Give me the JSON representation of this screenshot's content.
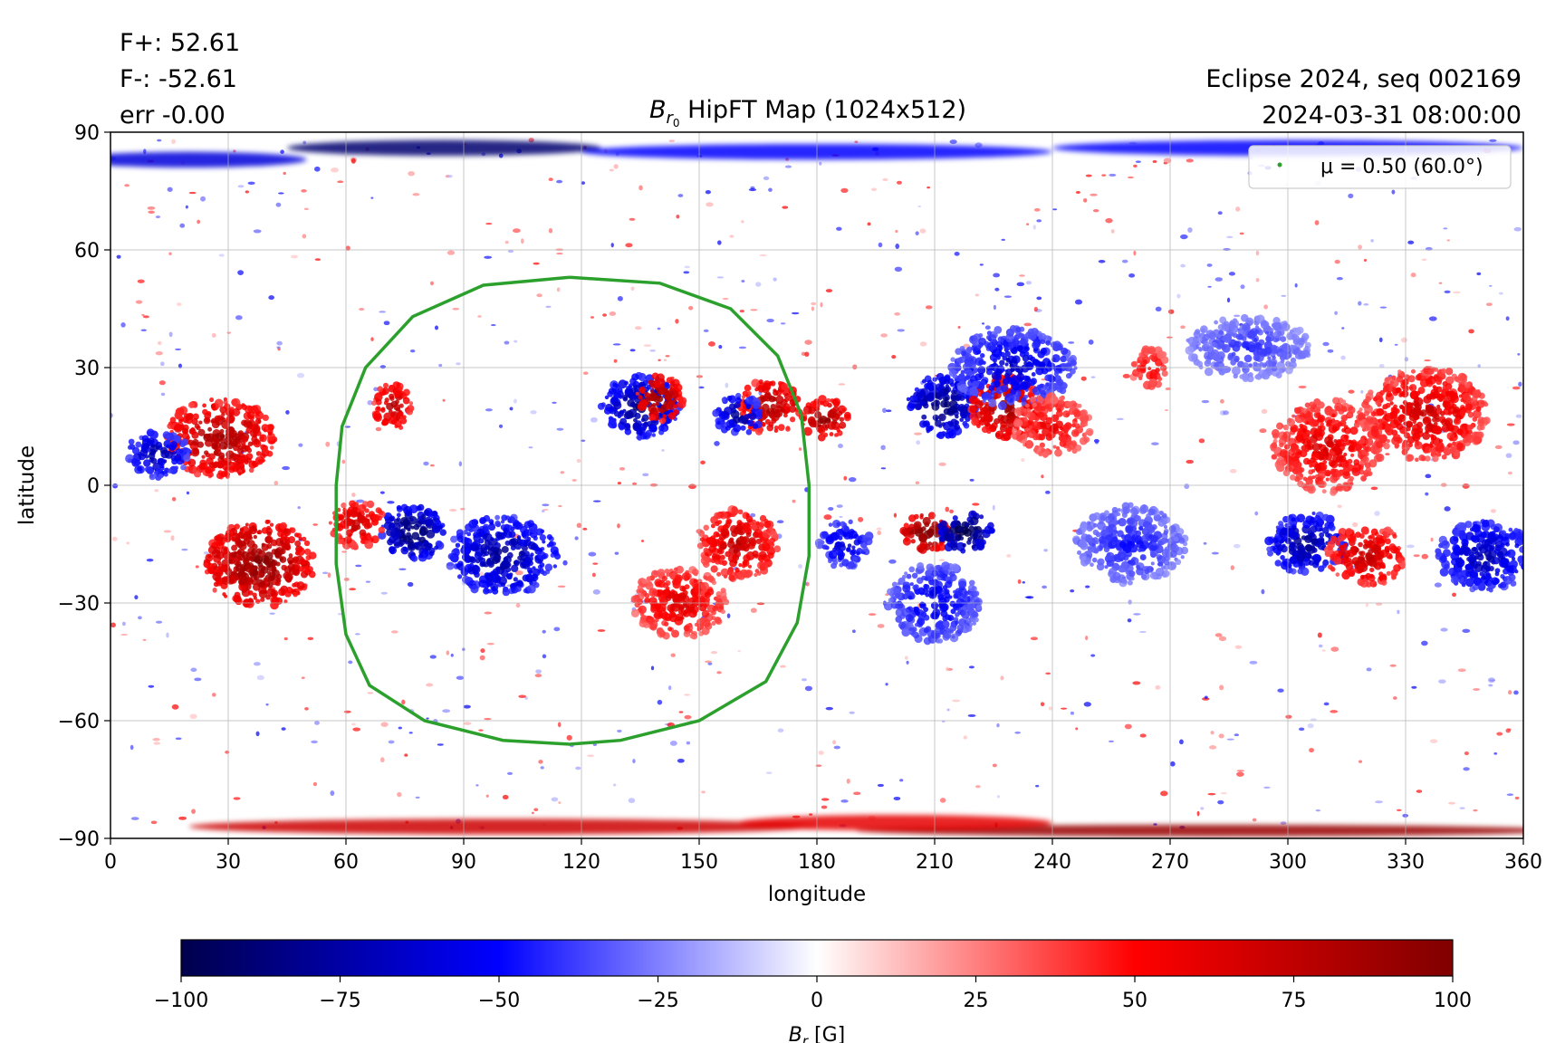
{
  "header": {
    "flux_pos": "F+: 52.61",
    "flux_neg": "F-: -52.61",
    "err": "err -0.00",
    "run": "Eclipse 2024, seq 002169",
    "datetime": "2024-03-31 08:00:00"
  },
  "chart_data": {
    "type": "heatmap",
    "title_main": "B",
    "title_sub": "r",
    "title_subsub": "0",
    "title_rest": " HipFT Map (1024x512)",
    "xlabel": "longitude",
    "ylabel": "latitude",
    "xlim": [
      0,
      360
    ],
    "ylim": [
      -90,
      90
    ],
    "xticks": [
      0,
      30,
      60,
      90,
      120,
      150,
      180,
      210,
      240,
      270,
      300,
      330,
      360
    ],
    "yticks": [
      90,
      60,
      30,
      0,
      -30,
      -60,
      -90
    ],
    "grid": true,
    "legend": {
      "placement": "top-right",
      "label": "μ = 0.50 (60.0°)",
      "color": "#2ca02c"
    },
    "mu_contour": {
      "color": "#2ca02c",
      "points": [
        [
          117,
          53
        ],
        [
          140,
          51.5
        ],
        [
          158,
          45
        ],
        [
          170,
          33
        ],
        [
          176,
          18
        ],
        [
          178,
          0
        ],
        [
          178,
          -18
        ],
        [
          175,
          -35
        ],
        [
          167,
          -50
        ],
        [
          150,
          -60
        ],
        [
          130,
          -65
        ],
        [
          117,
          -66
        ],
        [
          100,
          -65
        ],
        [
          80,
          -60
        ],
        [
          66,
          -51
        ],
        [
          60,
          -38
        ],
        [
          57.5,
          -20
        ],
        [
          57.5,
          0
        ],
        [
          59,
          15
        ],
        [
          65,
          30
        ],
        [
          77,
          43
        ],
        [
          95,
          51
        ],
        [
          117,
          53
        ]
      ]
    },
    "colorbar": {
      "label_main": "B",
      "label_sub": "r",
      "label_unit": " [G]",
      "min": -100,
      "max": 100,
      "ticks": [
        -100,
        -75,
        -50,
        -25,
        0,
        25,
        50,
        75,
        100
      ],
      "tick_labels": [
        "−100",
        "−75",
        "−50",
        "−25",
        "0",
        "25",
        "50",
        "75",
        "100"
      ],
      "colormap": "seismic",
      "stops": [
        "#00004c",
        "#0000ff",
        "#ffffff",
        "#ff0000",
        "#800000"
      ]
    },
    "regions": [
      {
        "lon": 208,
        "lat": -12,
        "value": 100,
        "wlon": 6,
        "hlat": 5
      },
      {
        "lon": 218,
        "lat": -12,
        "value": -100,
        "wlon": 7,
        "hlat": 5
      },
      {
        "lon": 212,
        "lat": 20,
        "value": -85,
        "wlon": 9,
        "hlat": 8
      },
      {
        "lon": 228,
        "lat": 20,
        "value": 85,
        "wlon": 9,
        "hlat": 8
      },
      {
        "lon": 38,
        "lat": -20,
        "value": 90,
        "wlon": 14,
        "hlat": 11
      },
      {
        "lon": 28,
        "lat": 12,
        "value": 80,
        "wlon": 14,
        "hlat": 10
      },
      {
        "lon": 12,
        "lat": 8,
        "value": -70,
        "wlon": 8,
        "hlat": 6
      },
      {
        "lon": 77,
        "lat": -12,
        "value": -90,
        "wlon": 8,
        "hlat": 7
      },
      {
        "lon": 63,
        "lat": -10,
        "value": 70,
        "wlon": 7,
        "hlat": 6
      },
      {
        "lon": 72,
        "lat": 20,
        "value": 75,
        "wlon": 5,
        "hlat": 6
      },
      {
        "lon": 135,
        "lat": 20,
        "value": -80,
        "wlon": 10,
        "hlat": 8
      },
      {
        "lon": 140,
        "lat": 22,
        "value": 85,
        "wlon": 6,
        "hlat": 6
      },
      {
        "lon": 168,
        "lat": 20,
        "value": 80,
        "wlon": 8,
        "hlat": 7
      },
      {
        "lon": 182,
        "lat": 17,
        "value": 85,
        "wlon": 6,
        "hlat": 5
      },
      {
        "lon": 160,
        "lat": 18,
        "value": -75,
        "wlon": 6,
        "hlat": 5
      },
      {
        "lon": 100,
        "lat": -18,
        "value": -75,
        "wlon": 14,
        "hlat": 10
      },
      {
        "lon": 160,
        "lat": -15,
        "value": 70,
        "wlon": 10,
        "hlat": 9
      },
      {
        "lon": 145,
        "lat": -30,
        "value": 60,
        "wlon": 12,
        "hlat": 9
      },
      {
        "lon": 230,
        "lat": 30,
        "value": -60,
        "wlon": 16,
        "hlat": 10
      },
      {
        "lon": 240,
        "lat": 15,
        "value": 55,
        "wlon": 10,
        "hlat": 8
      },
      {
        "lon": 310,
        "lat": 10,
        "value": 60,
        "wlon": 14,
        "hlat": 12
      },
      {
        "lon": 335,
        "lat": 18,
        "value": 65,
        "wlon": 16,
        "hlat": 12
      },
      {
        "lon": 305,
        "lat": -15,
        "value": -75,
        "wlon": 10,
        "hlat": 8
      },
      {
        "lon": 320,
        "lat": -18,
        "value": 70,
        "wlon": 10,
        "hlat": 8
      },
      {
        "lon": 350,
        "lat": -18,
        "value": -70,
        "wlon": 12,
        "hlat": 9
      },
      {
        "lon": 187,
        "lat": -15,
        "value": -60,
        "wlon": 7,
        "hlat": 6
      },
      {
        "lon": 210,
        "lat": -30,
        "value": -55,
        "wlon": 12,
        "hlat": 10
      },
      {
        "lon": 260,
        "lat": -15,
        "value": -45,
        "wlon": 14,
        "hlat": 10
      },
      {
        "lon": 290,
        "lat": 35,
        "value": -40,
        "wlon": 16,
        "hlat": 8
      },
      {
        "lon": 265,
        "lat": 30,
        "value": 55,
        "wlon": 5,
        "hlat": 5
      }
    ],
    "polar_bands": [
      {
        "lon": 85,
        "lat": 86,
        "value": -90,
        "wlon": 40,
        "hlat": 2
      },
      {
        "lon": 20,
        "lat": 83,
        "value": -60,
        "wlon": 30,
        "hlat": 2
      },
      {
        "lon": 180,
        "lat": 85,
        "value": -50,
        "wlon": 60,
        "hlat": 2
      },
      {
        "lon": 300,
        "lat": 86,
        "value": -50,
        "wlon": 60,
        "hlat": 2
      },
      {
        "lon": 100,
        "lat": -87,
        "value": 70,
        "wlon": 80,
        "hlat": 2
      },
      {
        "lon": 280,
        "lat": -88,
        "value": 90,
        "wlon": 90,
        "hlat": 1.5
      },
      {
        "lon": 200,
        "lat": -86,
        "value": 60,
        "wlon": 40,
        "hlat": 2
      }
    ]
  }
}
